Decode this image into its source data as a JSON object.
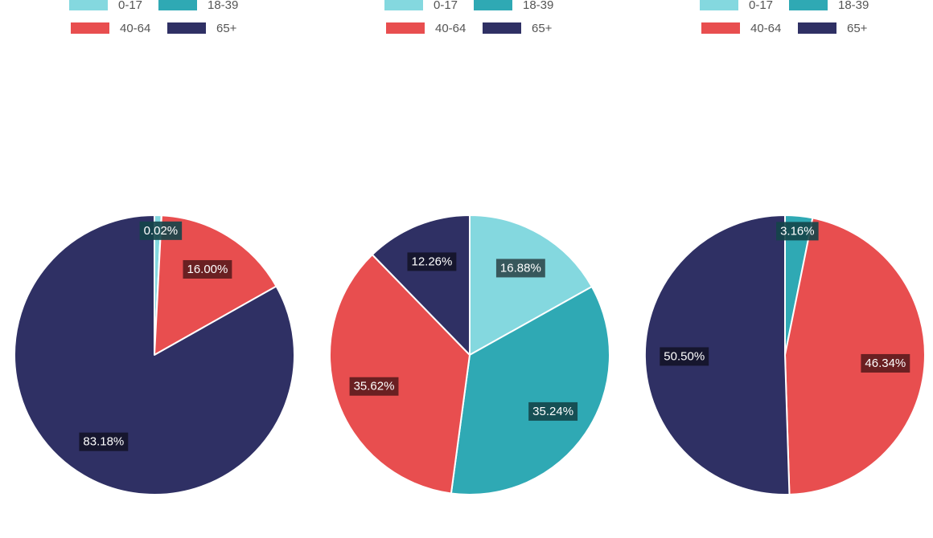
{
  "chart_data": [
    {
      "type": "pie",
      "legend": [
        "0-17",
        "18-39",
        "40-64",
        "65+"
      ],
      "colors": [
        "#84d8df",
        "#2fa9b4",
        "#e84e4f",
        "#2f3064"
      ],
      "label_backgrounds": [
        "#2f4a4e",
        "#144549",
        "#5c1c1d",
        "#141428"
      ],
      "slices": [
        {
          "name": "0-17",
          "value": 0.8,
          "label": ""
        },
        {
          "name": "18-39",
          "value": 0.02,
          "label": "0.02%"
        },
        {
          "name": "40-64",
          "value": 16.0,
          "label": "16.00%"
        },
        {
          "name": "65+",
          "value": 83.18,
          "label": "83.18%"
        }
      ]
    },
    {
      "type": "pie",
      "legend": [
        "0-17",
        "18-39",
        "40-64",
        "65+"
      ],
      "colors": [
        "#84d8df",
        "#2fa9b4",
        "#e84e4f",
        "#2f3064"
      ],
      "label_backgrounds": [
        "#2f4a4e",
        "#144549",
        "#5c1c1d",
        "#141428"
      ],
      "slices": [
        {
          "name": "0-17",
          "value": 16.88,
          "label": "16.88%"
        },
        {
          "name": "18-39",
          "value": 35.24,
          "label": "35.24%"
        },
        {
          "name": "40-64",
          "value": 35.62,
          "label": "35.62%"
        },
        {
          "name": "65+",
          "value": 12.26,
          "label": "12.26%"
        }
      ]
    },
    {
      "type": "pie",
      "legend": [
        "0-17",
        "18-39",
        "40-64",
        "65+"
      ],
      "colors": [
        "#84d8df",
        "#2fa9b4",
        "#e84e4f",
        "#2f3064"
      ],
      "label_backgrounds": [
        "#2f4a4e",
        "#144549",
        "#5c1c1d",
        "#141428"
      ],
      "slices": [
        {
          "name": "0-17",
          "value": 0.0,
          "label": ""
        },
        {
          "name": "18-39",
          "value": 3.16,
          "label": "3.16%"
        },
        {
          "name": "40-64",
          "value": 46.34,
          "label": "46.34%"
        },
        {
          "name": "65+",
          "value": 50.5,
          "label": "50.50%"
        }
      ]
    }
  ]
}
